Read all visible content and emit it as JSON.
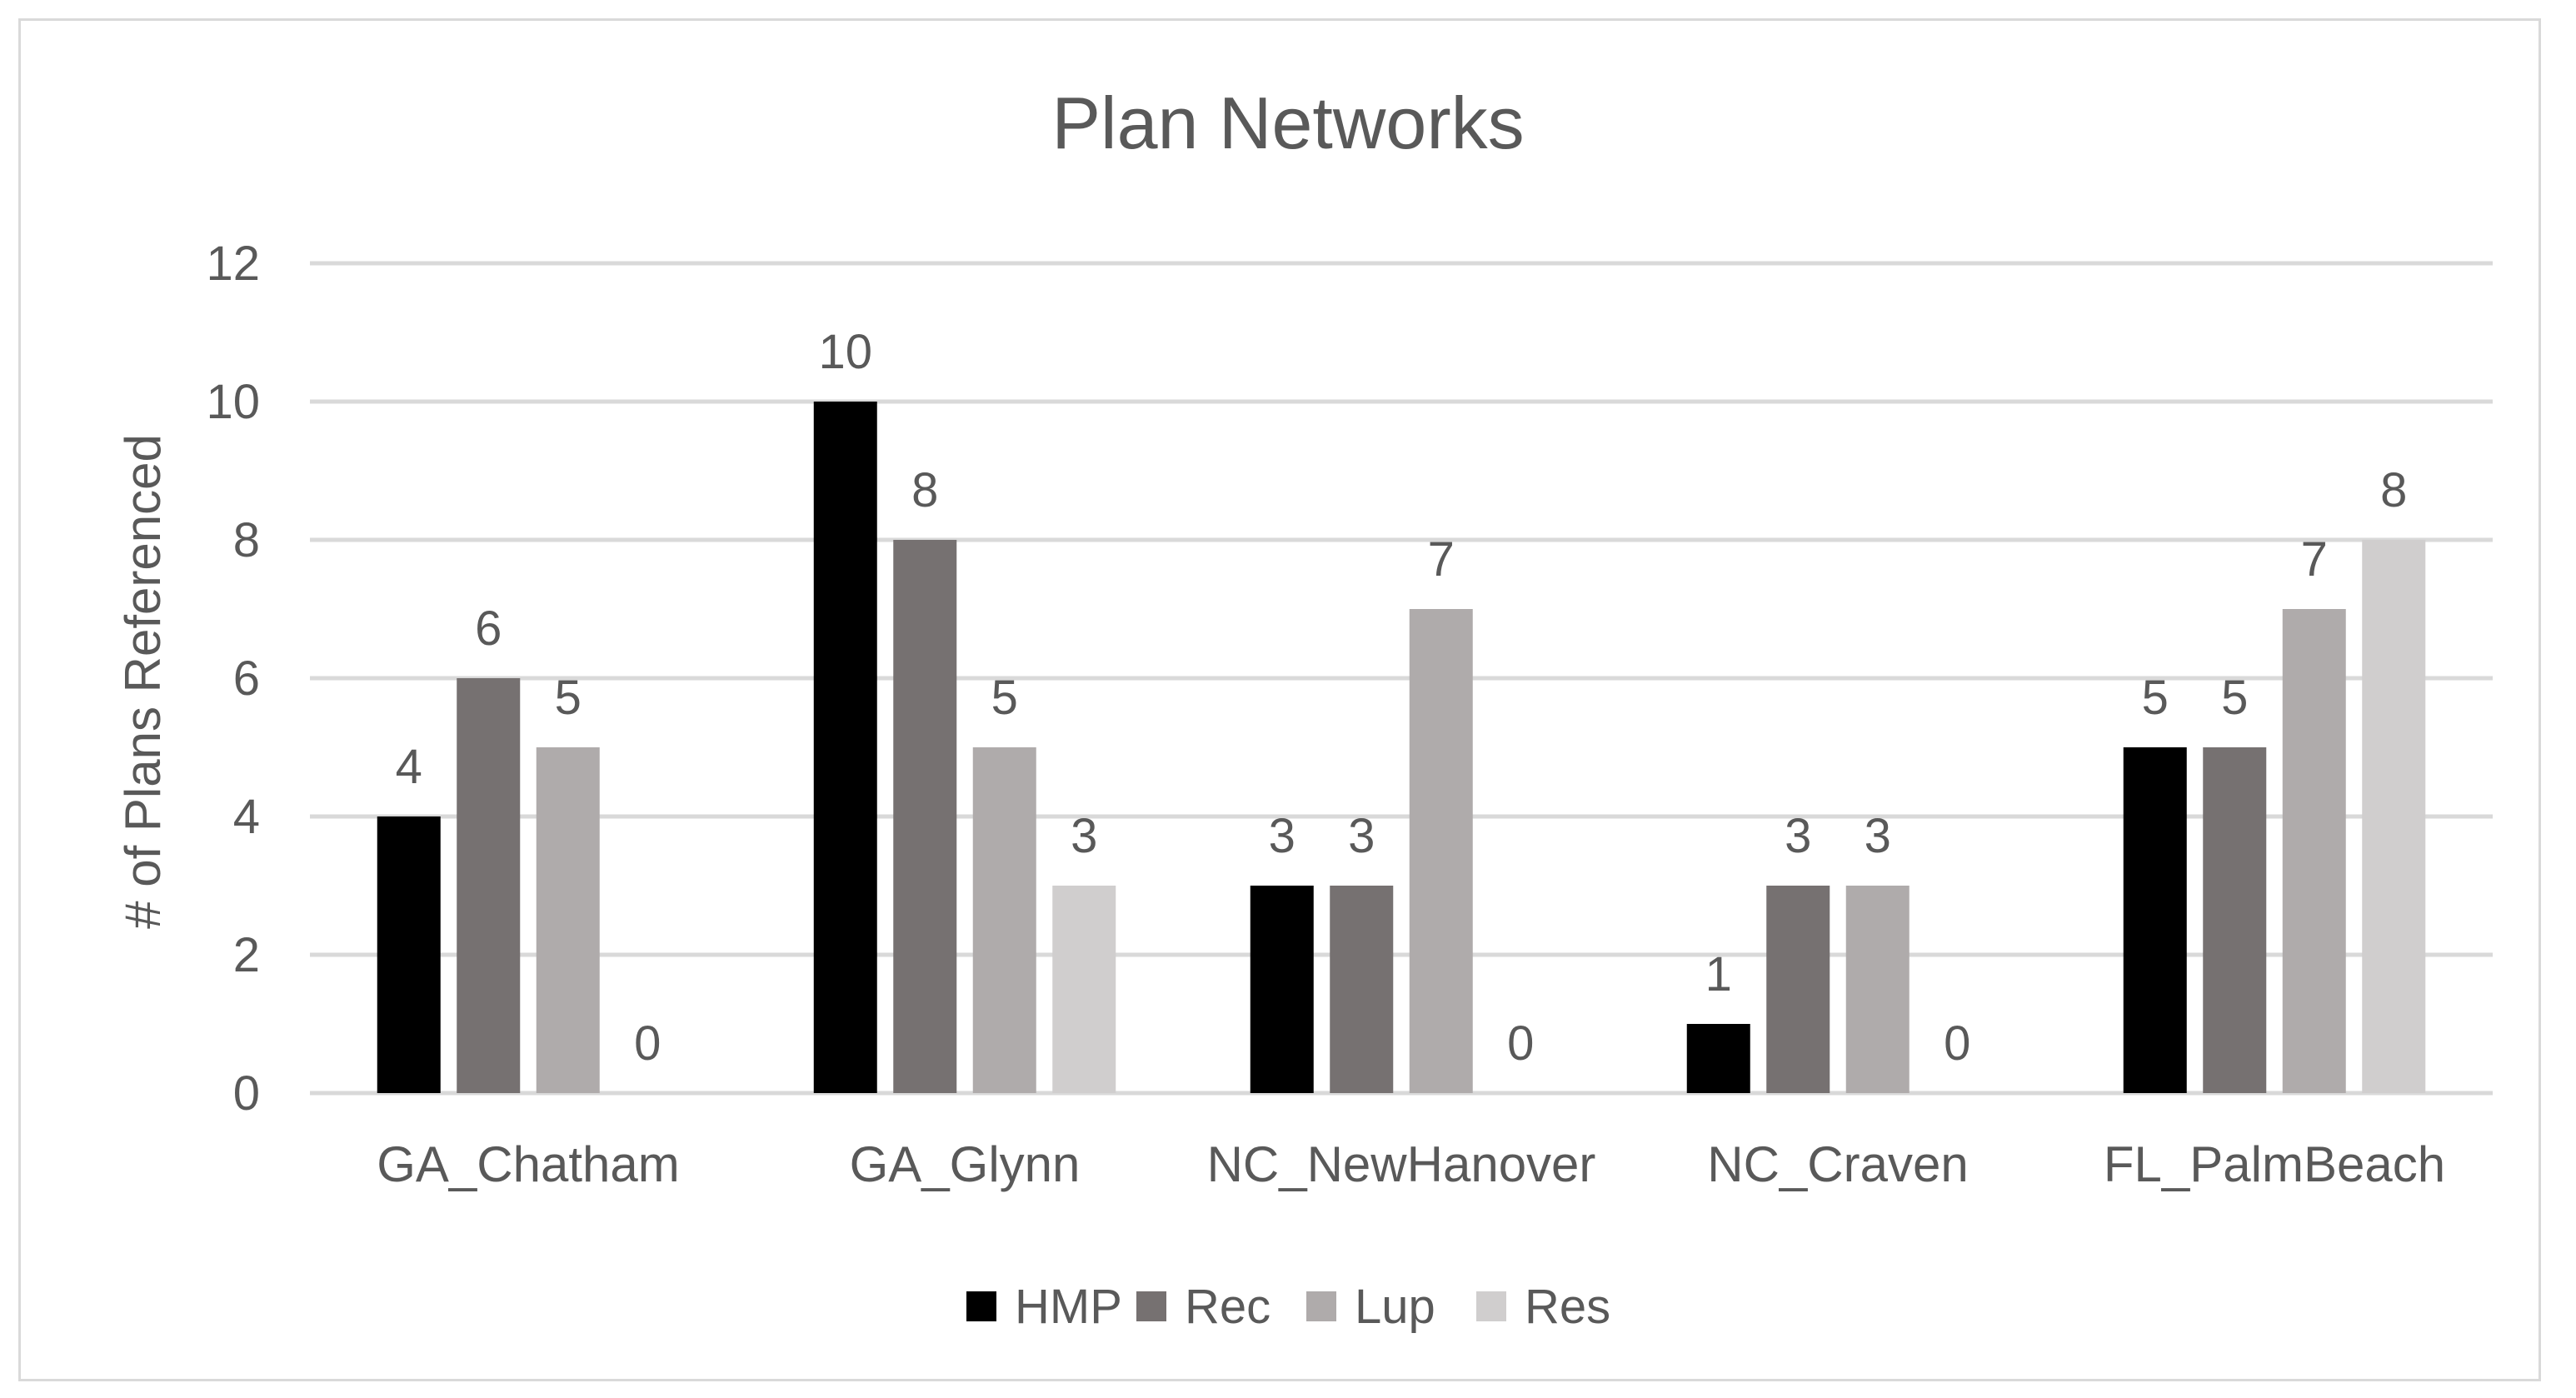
{
  "chart_data": {
    "type": "bar",
    "title": "Plan Networks",
    "xlabel": "",
    "ylabel": "# of Plans Referenced",
    "ylim": [
      0,
      12
    ],
    "yticks": [
      0,
      2,
      4,
      6,
      8,
      10,
      12
    ],
    "grid": true,
    "legend_position": "bottom",
    "categories": [
      "GA_Chatham",
      "GA_Glynn",
      "NC_NewHanover",
      "NC_Craven",
      "FL_PalmBeach"
    ],
    "series": [
      {
        "name": "HMP",
        "color": "#000000",
        "values": [
          4,
          10,
          3,
          1,
          5
        ]
      },
      {
        "name": "Rec",
        "color": "#767171",
        "values": [
          6,
          8,
          3,
          3,
          5
        ]
      },
      {
        "name": "Lup",
        "color": "#afabab",
        "values": [
          5,
          5,
          7,
          3,
          7
        ]
      },
      {
        "name": "Res",
        "color": "#d0cece",
        "values": [
          0,
          3,
          0,
          0,
          8
        ]
      }
    ],
    "colors": {
      "text": "#595959",
      "grid": "#d9d9d9",
      "title": "#595959"
    }
  }
}
